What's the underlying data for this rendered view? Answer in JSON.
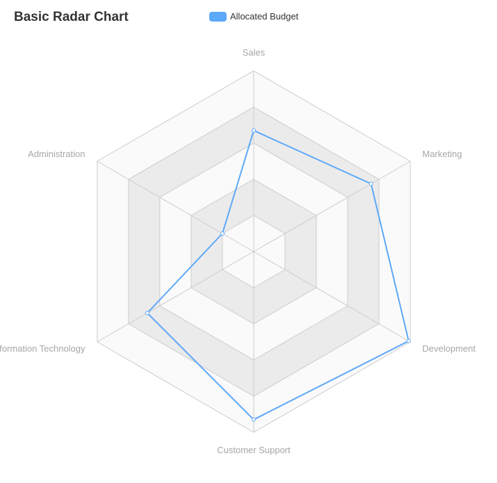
{
  "title": "Basic Radar Chart",
  "legend": {
    "label": "Allocated Budget",
    "color": "#5ca8f9"
  },
  "chart_data": {
    "type": "radar",
    "title": "Basic Radar Chart",
    "legend_position": "top",
    "split_number": 5,
    "split_area_colors": [
      "#fafafa",
      "#ebebeb"
    ],
    "indicators": [
      {
        "name": "Sales",
        "max": 100
      },
      {
        "name": "Marketing",
        "max": 100
      },
      {
        "name": "Development",
        "max": 100
      },
      {
        "name": "Customer Support",
        "max": 100
      },
      {
        "name": "Information Technology",
        "max": 100
      },
      {
        "name": "Administration",
        "max": 100
      }
    ],
    "series": [
      {
        "name": "Allocated Budget",
        "color": "#5ca8f9",
        "values": [
          67,
          75,
          99,
          93,
          68,
          20
        ]
      }
    ]
  }
}
